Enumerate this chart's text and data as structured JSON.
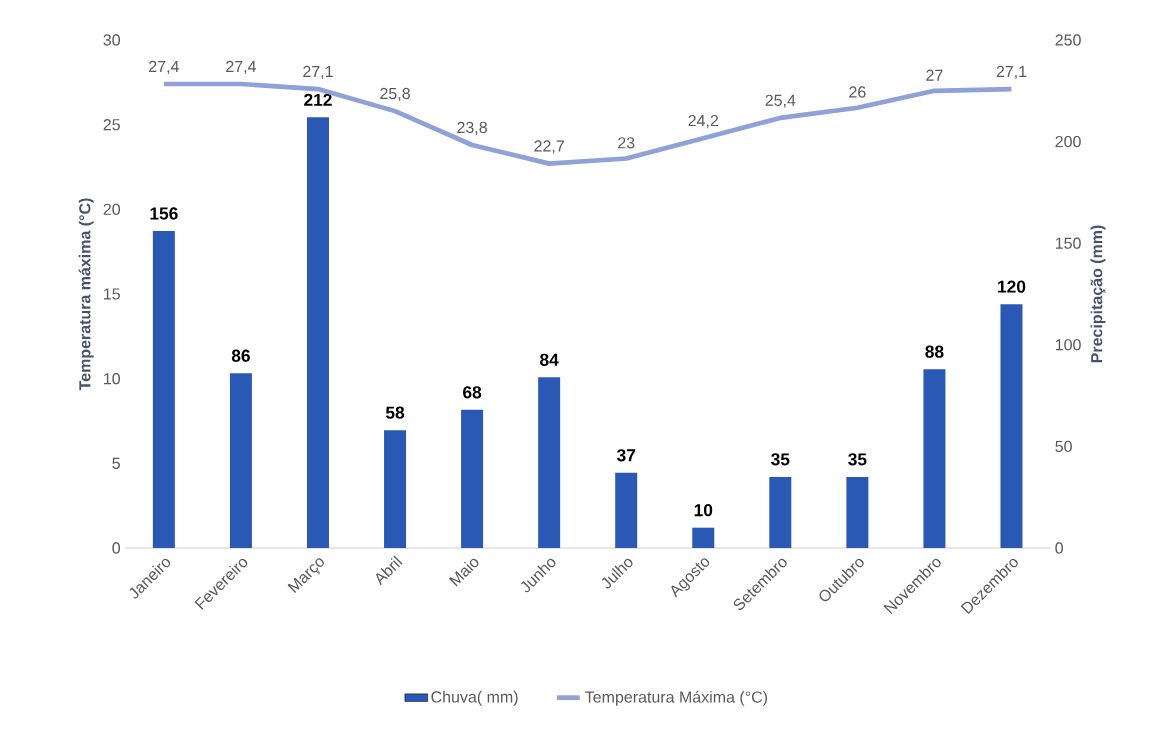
{
  "chart_data": {
    "type": "bar",
    "categories": [
      "Janeiro",
      "Fevereiro",
      "Março",
      "Abril",
      "Maio",
      "Junho",
      "Julho",
      "Agosto",
      "Setembro",
      "Outubro",
      "Novembro",
      "Dezembro"
    ],
    "ylabel": "Temperatura máxima (°C)",
    "y2label": "Precipitação (mm)",
    "ylim": [
      0,
      30
    ],
    "yticks": [
      0,
      5,
      10,
      15,
      20,
      25,
      30
    ],
    "y2lim": [
      0,
      250
    ],
    "y2ticks": [
      0,
      50,
      100,
      150,
      200,
      250
    ],
    "series": [
      {
        "name": "Chuva( mm)",
        "axis": "y2",
        "color": "#2a58b5",
        "values": [
          156,
          86,
          212,
          58,
          68,
          84,
          37,
          10,
          35,
          35,
          88,
          120
        ],
        "value_labels": [
          "156",
          "86",
          "212",
          "58",
          "68",
          "84",
          "37",
          "10",
          "35",
          "35",
          "88",
          "120"
        ]
      },
      {
        "name": "Temperatura Máxima (°C)",
        "type": "line",
        "color": "#8ea1d8",
        "values": [
          27.4,
          27.4,
          27.1,
          25.8,
          23.8,
          22.7,
          23,
          24.2,
          25.4,
          26,
          27,
          27.1
        ],
        "value_labels": [
          "27,4",
          "27,4",
          "27,1",
          "25,8",
          "23,8",
          "22,7",
          "23",
          "24,2",
          "25,4",
          "26",
          "27",
          "27,1"
        ]
      }
    ],
    "legend": "bottom"
  }
}
